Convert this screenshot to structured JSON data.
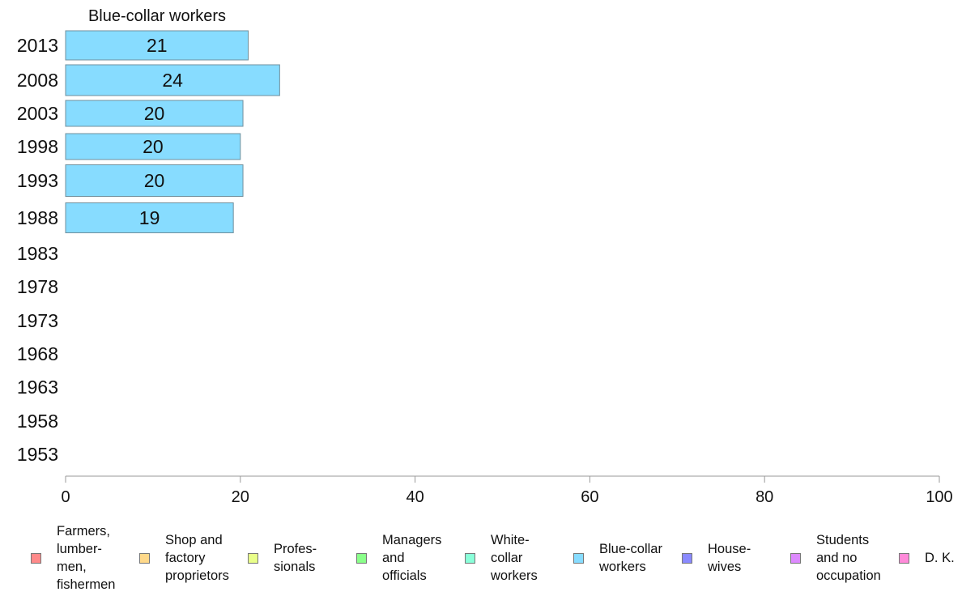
{
  "chart_data": {
    "type": "bar",
    "orientation": "horizontal",
    "title": "Blue-collar workers",
    "categories": [
      "2013",
      "2008",
      "2003",
      "1998",
      "1993",
      "1988",
      "1983",
      "1978",
      "1973",
      "1968",
      "1963",
      "1958",
      "1953"
    ],
    "series": [
      {
        "name": "Blue-collar workers",
        "color": "#87dcff",
        "values": [
          21,
          24,
          20,
          20,
          20,
          19,
          null,
          null,
          null,
          null,
          null,
          null,
          null
        ],
        "labels": [
          "21",
          "24",
          "20",
          "20",
          "20",
          "19",
          "",
          "",
          "",
          "",
          "",
          "",
          ""
        ],
        "precise_values": [
          20.9,
          24.5,
          20.3,
          20.0,
          20.3,
          19.2,
          null,
          null,
          null,
          null,
          null,
          null,
          null
        ]
      }
    ],
    "xlim": [
      0,
      100
    ],
    "xticks": [
      "0",
      "20",
      "40",
      "60",
      "80",
      "100"
    ],
    "grid": false,
    "legend": {
      "position": "bottom",
      "items": [
        {
          "label": "Farmers,\nlumber-\nmen,\nfishermen",
          "color": "#ff8a8a"
        },
        {
          "label": "Shop and\nfactory\nproprietors",
          "color": "#ffd98a"
        },
        {
          "label": "Profes-\nsionals",
          "color": "#e9ff8a"
        },
        {
          "label": "Managers\nand\nofficials",
          "color": "#8aff8a"
        },
        {
          "label": "White-\ncollar\nworkers",
          "color": "#8affd9"
        },
        {
          "label": "Blue-collar\nworkers",
          "color": "#87dcff"
        },
        {
          "label": "House-\nwives",
          "color": "#8a8aff"
        },
        {
          "label": "Students\nand no\noccupation",
          "color": "#dd8aff"
        },
        {
          "label": "D. K.",
          "color": "#ff8ad9"
        }
      ]
    }
  }
}
